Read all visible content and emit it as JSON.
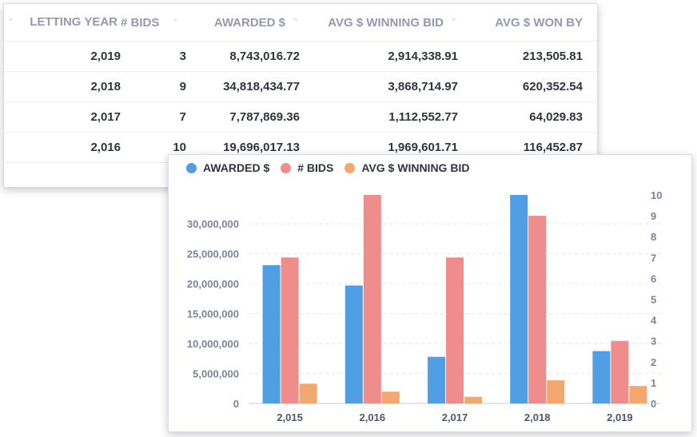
{
  "table": {
    "columns": [
      "LETTING YEAR",
      "# BIDS",
      "AWARDED $",
      "AVG $ WINNING BID",
      "AVG $ WON BY"
    ],
    "rows": [
      [
        "2,019",
        "3",
        "8,743,016.72",
        "2,914,338.91",
        "213,505.81"
      ],
      [
        "2,018",
        "9",
        "34,818,434.77",
        "3,868,714.97",
        "620,352.54"
      ],
      [
        "2,017",
        "7",
        "7,787,869.36",
        "1,112,552.77",
        "64,029.83"
      ],
      [
        "2,016",
        "10",
        "19,696,017.13",
        "1,969,601.71",
        "116,452.87"
      ]
    ]
  },
  "chart_data": {
    "type": "bar",
    "categories": [
      "2,015",
      "2,016",
      "2,017",
      "2,018",
      "2,019"
    ],
    "series": [
      {
        "name": "AWARDED $",
        "axis": "left",
        "color": "#509ee3",
        "values": [
          23100000,
          19696017.13,
          7787869.36,
          34818434.77,
          8743016.72
        ]
      },
      {
        "name": "# BIDS",
        "axis": "right",
        "color": "#ef8c8c",
        "values": [
          7,
          10,
          7,
          9,
          3
        ]
      },
      {
        "name": "AVG $ WINNING BID",
        "axis": "left",
        "color": "#f2a86f",
        "values": [
          3300000,
          1969601.71,
          1112552.77,
          3868714.97,
          2914338.91
        ]
      }
    ],
    "left_axis": {
      "min": 0,
      "max": 34818434.77,
      "ticks": [
        0,
        5000000,
        10000000,
        15000000,
        20000000,
        25000000,
        30000000
      ],
      "tick_labels": [
        "0",
        "5,000,000",
        "10,000,000",
        "15,000,000",
        "20,000,000",
        "25,000,000",
        "30,000,000"
      ]
    },
    "right_axis": {
      "min": 0,
      "max": 10,
      "ticks": [
        0,
        1,
        2,
        3,
        4,
        5,
        6,
        7,
        8,
        9,
        10
      ],
      "tick_labels": [
        "0",
        "1",
        "2",
        "3",
        "4",
        "5",
        "6",
        "7",
        "8",
        "9",
        "10"
      ]
    },
    "legend_position": "top-left",
    "grid": "horizontal dashed",
    "title": "",
    "xlabel": "",
    "ylabel": ""
  }
}
